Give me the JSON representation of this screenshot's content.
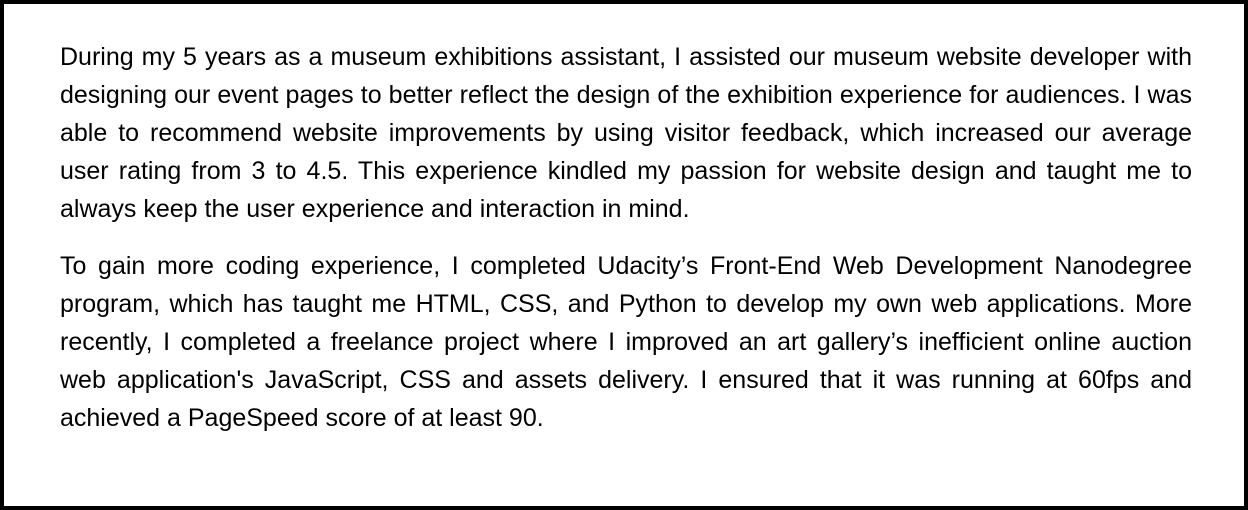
{
  "colors": {
    "background": "#ffffff",
    "border": "#000000",
    "text": "#000000"
  },
  "document": {
    "paragraphs": [
      "During my 5 years as a museum exhibitions assistant, I assisted our museum website developer with designing our event pages to better reflect the design of the exhibition experience for audiences. I was able to recommend website improvements by using visitor feedback, which increased our average user rating from 3 to 4.5. This experience kindled my passion for website design and taught me to always keep the user experience and interaction in mind.",
      "To gain more coding experience, I completed Udacity’s Front-End Web Development Nanodegree program, which has taught me HTML, CSS, and Python to develop my own web applications. More recently, I completed a freelance project where I improved an art gallery’s inefficient online auction web application's JavaScript, CSS and assets delivery. I ensured that it was running at 60fps and achieved a PageSpeed score of at least 90."
    ]
  }
}
